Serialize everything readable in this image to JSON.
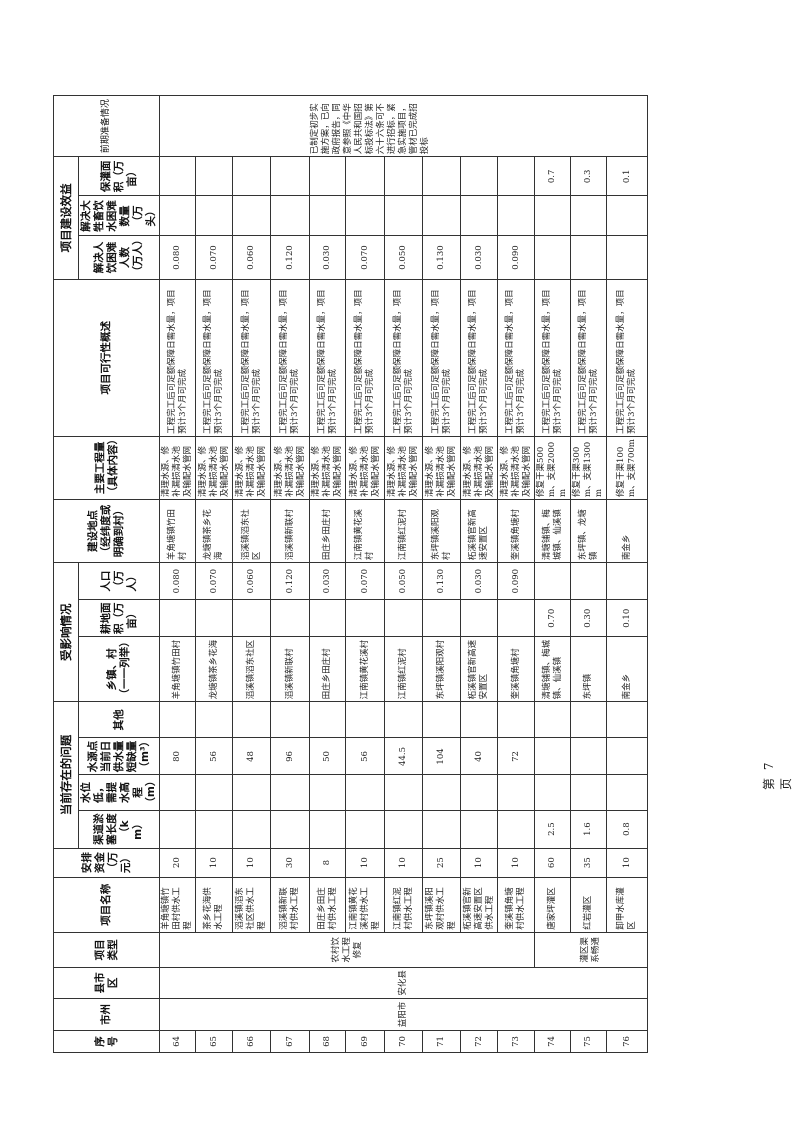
{
  "header": {
    "seq": "序号",
    "city": "市州",
    "county": "县市区",
    "type": "项目类型",
    "name": "项目名称",
    "funds": "安排资金（万元）",
    "problems_group": "当前存在的问题",
    "canal": "渠道淤塞长度（km）",
    "lift": "水位低，需提水高程（m）",
    "shortage": "水源点当前日供水量短缺量（m³）",
    "other": "其他",
    "affected_group": "受影响情况",
    "towns": "乡镇、村（一一列举）",
    "farmland": "耕地面积（万亩）",
    "population": "人口（万人）",
    "location": "建设地点（经纬度或明确到村）",
    "works": "主要工程量（具体内容）",
    "feasibility": "项目可行性概述",
    "benefit_group": "项目建设效益",
    "people": "解决人饮困难人数（万人）",
    "livestock": "解决大牲畜饮水困难数量（万头）",
    "irrigation": "保灌面积（万亩）",
    "prep": "前期准备情况"
  },
  "merged": {
    "city": "益阳市",
    "county": "安化县",
    "type_a": "农村饮水工程修复",
    "type_b": "灌区渠系畅通",
    "prep": "已制定初步实施方案，已向政府报告，同意参照《中华人民共和国招标投标法》第六十六条可不进行招标，紧急实施项目，管材已完成招投标"
  },
  "rows": [
    {
      "seq": "64",
      "name": "羊角塘镇竹田村供水工程",
      "funds": "20",
      "canal": "",
      "lift": "",
      "shortage": "80",
      "other": "",
      "towns": "羊角塘镇竹田村",
      "farmland": "",
      "population": "0.080",
      "location": "羊角塘镇竹田村",
      "works": "清理水源、修补漏损清水池及输配水管网",
      "feasibility": "工程完工后可足额保障日需水量，项目预计3个月可完成",
      "people": "0.080",
      "livestock": "",
      "irrigation": ""
    },
    {
      "seq": "65",
      "name": "茶乡花海供水工程",
      "funds": "10",
      "canal": "",
      "lift": "",
      "shortage": "56",
      "other": "",
      "towns": "龙塘镇茶乡花海",
      "farmland": "",
      "population": "0.070",
      "location": "龙塘镇茶乡花海",
      "works": "清理水源、修补漏损清水池及输配水管网",
      "feasibility": "工程完工后可足额保障日需水量，项目预计3个月可完成",
      "people": "0.070",
      "livestock": "",
      "irrigation": ""
    },
    {
      "seq": "66",
      "name": "滔溪镇滔东社区供水工程",
      "funds": "10",
      "canal": "",
      "lift": "",
      "shortage": "48",
      "other": "",
      "towns": "滔溪镇滔东社区",
      "farmland": "",
      "population": "0.060",
      "location": "滔溪镇滔东社区",
      "works": "清理水源、修补漏损清水池及输配水管网",
      "feasibility": "工程完工后可足额保障日需水量，项目预计3个月可完成",
      "people": "0.060",
      "livestock": "",
      "irrigation": ""
    },
    {
      "seq": "67",
      "name": "滔溪镇新联村供水工程",
      "funds": "30",
      "canal": "",
      "lift": "",
      "shortage": "96",
      "other": "",
      "towns": "滔溪镇新联村",
      "farmland": "",
      "population": "0.120",
      "location": "滔溪镇新联村",
      "works": "清理水源、修补漏损清水池及输配水管网",
      "feasibility": "工程完工后可足额保障日需水量，项目预计3个月可完成",
      "people": "0.120",
      "livestock": "",
      "irrigation": ""
    },
    {
      "seq": "68",
      "name": "田庄乡田庄村供水工程",
      "funds": "8",
      "canal": "",
      "lift": "",
      "shortage": "50",
      "other": "",
      "towns": "田庄乡田庄村",
      "farmland": "",
      "population": "0.030",
      "location": "田庄乡田庄村",
      "works": "清理水源、修补漏损清水池及输配水管网",
      "feasibility": "工程完工后可足额保障日需水量，项目预计3个月可完成",
      "people": "0.030",
      "livestock": "",
      "irrigation": ""
    },
    {
      "seq": "69",
      "name": "江南镇黄花溪村供水工程",
      "funds": "10",
      "canal": "",
      "lift": "",
      "shortage": "56",
      "other": "",
      "towns": "江南镇黄花溪村",
      "farmland": "",
      "population": "0.070",
      "location": "江南镇黄花溪村",
      "works": "清理水源、修补漏损清水池及输配水管网",
      "feasibility": "工程完工后可足额保障日需水量，项目预计3个月可完成",
      "people": "0.070",
      "livestock": "",
      "irrigation": ""
    },
    {
      "seq": "70",
      "name": "江南镇红泥村供水工程",
      "funds": "10",
      "canal": "",
      "lift": "",
      "shortage": "44.5",
      "other": "",
      "towns": "江南镇红泥村",
      "farmland": "",
      "population": "0.050",
      "location": "江南镇红泥村",
      "works": "清理水源、修补漏损清水池及输配水管网",
      "feasibility": "工程完工后可足额保障日需水量，项目预计3个月可完成",
      "people": "0.050",
      "livestock": "",
      "irrigation": ""
    },
    {
      "seq": "71",
      "name": "东坪镇溪阳观村供水工程",
      "funds": "25",
      "canal": "",
      "lift": "",
      "shortage": "104",
      "other": "",
      "towns": "东坪镇溪阳观村",
      "farmland": "",
      "population": "0.130",
      "location": "东坪镇溪阳观村",
      "works": "清理水源、修补漏损清水池及输配水管网",
      "feasibility": "工程完工后可足额保障日需水量，项目预计3个月可完成",
      "people": "0.130",
      "livestock": "",
      "irrigation": ""
    },
    {
      "seq": "72",
      "name": "柘溪镇官新高速安置区供水工程",
      "funds": "10",
      "canal": "",
      "lift": "",
      "shortage": "40",
      "other": "",
      "towns": "柘溪镇官新高速安置区",
      "farmland": "",
      "population": "0.030",
      "location": "柘溪镇官新高速安置区",
      "works": "清理水源、修补漏损清水池及输配水管网",
      "feasibility": "工程完工后可足额保障日需水量，项目预计3个月可完成",
      "people": "0.030",
      "livestock": "",
      "irrigation": ""
    },
    {
      "seq": "73",
      "name": "奎溪镇角塘村供水工程",
      "funds": "10",
      "canal": "",
      "lift": "",
      "shortage": "72",
      "other": "",
      "towns": "奎溪镇角塘村",
      "farmland": "",
      "population": "0.090",
      "location": "奎溪镇角塘村",
      "works": "清理水源、修补漏损清水池及输配水管网",
      "feasibility": "工程完工后可足额保障日需水量，项目预计3个月可完成",
      "people": "0.090",
      "livestock": "",
      "irrigation": ""
    },
    {
      "seq": "74",
      "name": "唐家坪灌区",
      "funds": "60",
      "canal": "2.5",
      "lift": "",
      "shortage": "",
      "other": "",
      "towns": "清塘铺镇、梅城镇、仙溪镇",
      "farmland": "0.70",
      "population": "",
      "location": "清塘铺镇、梅城镇、仙溪镇",
      "works": "修复干渠500m、支渠2000m",
      "feasibility": "工程完工后可足额保障日需水量，项目预计3个月可完成",
      "people": "",
      "livestock": "",
      "irrigation": "0.7"
    },
    {
      "seq": "75",
      "name": "红岩灌区",
      "funds": "35",
      "canal": "1.6",
      "lift": "",
      "shortage": "",
      "other": "",
      "towns": "东坪镇",
      "farmland": "0.30",
      "population": "",
      "location": "东坪镇、龙塘镇",
      "works": "修复干渠300m、支渠1300m",
      "feasibility": "工程完工后可足额保障日需水量，项目预计3个月可完成",
      "people": "",
      "livestock": "",
      "irrigation": "0.3"
    },
    {
      "seq": "76",
      "name": "卸甲水库灌区",
      "funds": "10",
      "canal": "0.8",
      "lift": "",
      "shortage": "",
      "other": "",
      "towns": "南金乡",
      "farmland": "0.10",
      "population": "",
      "location": "南金乡",
      "works": "修复干渠100m、支渠700m",
      "feasibility": "工程完工后可足额保障日需水量，项目预计3个月可完成",
      "people": "",
      "livestock": "",
      "irrigation": "0.1"
    }
  ],
  "footer": {
    "page": "第 7 页"
  }
}
